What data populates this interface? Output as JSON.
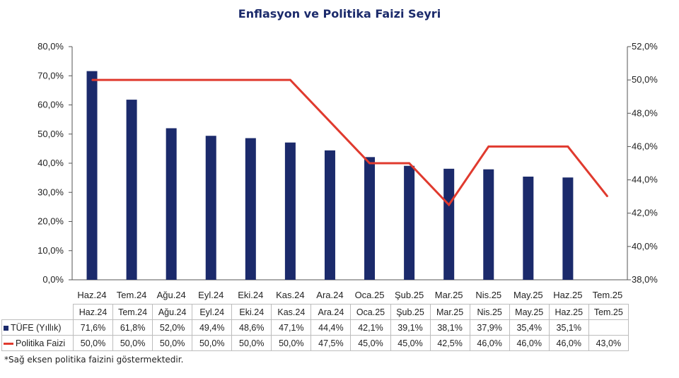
{
  "chart_data": {
    "type": "bar+line",
    "title": "Enflasyon ve Politika Faizi Seyri",
    "categories": [
      "Haz.24",
      "Tem.24",
      "Ağu.24",
      "Eyl.24",
      "Eki.24",
      "Kas.24",
      "Ara.24",
      "Oca.25",
      "Şub.25",
      "Mar.25",
      "Nis.25",
      "May.25",
      "Haz.25",
      "Tem.25"
    ],
    "series": [
      {
        "name": "TÜFE (Yıllık)",
        "type": "bar",
        "axis": "left",
        "color": "#1b2a6b",
        "values": [
          71.6,
          61.8,
          52.0,
          49.4,
          48.6,
          47.1,
          44.4,
          42.1,
          39.1,
          38.1,
          37.9,
          35.4,
          35.1,
          null
        ],
        "labels": [
          "71,6%",
          "61,8%",
          "52,0%",
          "49,4%",
          "48,6%",
          "47,1%",
          "44,4%",
          "42,1%",
          "39,1%",
          "38,1%",
          "37,9%",
          "35,4%",
          "35,1%",
          ""
        ]
      },
      {
        "name": "Politika Faizi",
        "type": "line",
        "axis": "right",
        "color": "#e03a2e",
        "values": [
          50.0,
          50.0,
          50.0,
          50.0,
          50.0,
          50.0,
          47.5,
          45.0,
          45.0,
          42.5,
          46.0,
          46.0,
          46.0,
          43.0
        ],
        "labels": [
          "50,0%",
          "50,0%",
          "50,0%",
          "50,0%",
          "50,0%",
          "50,0%",
          "47,5%",
          "45,0%",
          "45,0%",
          "42,5%",
          "46,0%",
          "46,0%",
          "46,0%",
          "43,0%"
        ]
      }
    ],
    "y_left": {
      "min": 0,
      "max": 80,
      "ticks": [
        "0,0%",
        "10,0%",
        "20,0%",
        "30,0%",
        "40,0%",
        "50,0%",
        "60,0%",
        "70,0%",
        "80,0%"
      ]
    },
    "y_right": {
      "min": 38,
      "max": 52,
      "ticks": [
        "38,0%",
        "40,0%",
        "42,0%",
        "44,0%",
        "46,0%",
        "48,0%",
        "50,0%",
        "52,0%"
      ]
    },
    "grid": false,
    "legend": "table-below"
  },
  "footnote": "*Sağ eksen politika faizini göstermektedir."
}
